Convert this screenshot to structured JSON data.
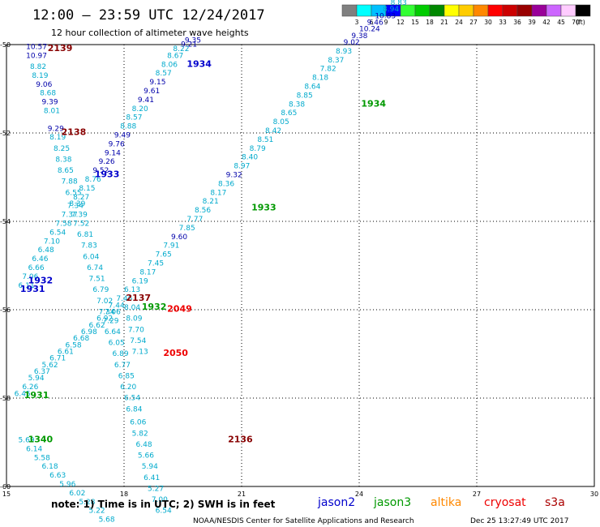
{
  "header": {
    "title": "12:00 – 23:59 UTC 12/24/2017",
    "subtitle": "12 hour collection of altimeter wave heights"
  },
  "colorbar": {
    "labels": [
      "3",
      "6",
      "9",
      "12",
      "15",
      "18",
      "21",
      "24",
      "27",
      "30",
      "33",
      "36",
      "39",
      "42",
      "45",
      "70",
      "(ft)"
    ],
    "colors": [
      "#808080",
      "#00ffff",
      "#00bfff",
      "#0000ff",
      "#33ff33",
      "#00cc00",
      "#008800",
      "#ffff00",
      "#ffcc00",
      "#ff8800",
      "#ff0000",
      "#cc0000",
      "#990000",
      "#990099",
      "#cc66ff",
      "#ffccff",
      "#000000"
    ]
  },
  "footer": {
    "note": "note:  1) Time is in UTC; 2) SWH is in feet",
    "satellites": [
      {
        "name": "jason2",
        "color": "#0000cc"
      },
      {
        "name": "jason3",
        "color": "#009900"
      },
      {
        "name": "altika",
        "color": "#ff8800"
      },
      {
        "name": "cryosat",
        "color": "#ee0000"
      },
      {
        "name": "s3a",
        "color": "#aa0000"
      }
    ],
    "credit": "NOAA/NESDIS Center for Satellite Applications and Research",
    "timestamp": "Dec 25 13:27:49 UTC 2017"
  },
  "chart_data": {
    "type": "scatter",
    "xlim": [
      15,
      30
    ],
    "ylim": [
      -60,
      -50
    ],
    "x_ticks": [
      15,
      18,
      21,
      24,
      27,
      30
    ],
    "y_ticks": [
      -50,
      -52,
      -54,
      -56,
      -58,
      -60
    ],
    "grid": true,
    "colors": {
      "light": "#00aacc",
      "dark": "#0000aa",
      "jason2": "#0000cc",
      "jason3": "#009900",
      "cryosat": "#ee0000",
      "s3a": "#880000"
    },
    "points": [
      {
        "x": 15.5,
        "y": -50.1,
        "v": "10.57",
        "c": "dark"
      },
      {
        "x": 15.5,
        "y": -50.3,
        "v": "10.97",
        "c": "dark"
      },
      {
        "x": 15.6,
        "y": -50.55,
        "v": "8.82",
        "c": "light"
      },
      {
        "x": 15.65,
        "y": -50.75,
        "v": "8.19",
        "c": "light"
      },
      {
        "x": 15.75,
        "y": -50.95,
        "v": "9.06",
        "c": "dark"
      },
      {
        "x": 15.85,
        "y": -51.15,
        "v": "8.68",
        "c": "light"
      },
      {
        "x": 15.9,
        "y": -51.35,
        "v": "9.39",
        "c": "dark"
      },
      {
        "x": 15.95,
        "y": -51.55,
        "v": "8.01",
        "c": "light"
      },
      {
        "x": 16.05,
        "y": -51.95,
        "v": "9.29",
        "c": "dark"
      },
      {
        "x": 16.1,
        "y": -52.15,
        "v": "8.19",
        "c": "light"
      },
      {
        "x": 16.2,
        "y": -52.4,
        "v": "8.25",
        "c": "light"
      },
      {
        "x": 16.25,
        "y": -52.65,
        "v": "8.38",
        "c": "light"
      },
      {
        "x": 16.3,
        "y": -52.9,
        "v": "8.65",
        "c": "light"
      },
      {
        "x": 16.4,
        "y": -53.15,
        "v": "7.88",
        "c": "light"
      },
      {
        "x": 16.5,
        "y": -53.4,
        "v": "6.55",
        "c": "light"
      },
      {
        "x": 16.6,
        "y": -53.65,
        "v": "8.39",
        "c": "light"
      },
      {
        "x": 16.65,
        "y": -53.9,
        "v": "7.39",
        "c": "light"
      },
      {
        "x": 16.7,
        "y": -54.1,
        "v": "7.52",
        "c": "light"
      },
      {
        "x": 16.8,
        "y": -54.35,
        "v": "6.81",
        "c": "light"
      },
      {
        "x": 16.9,
        "y": -54.6,
        "v": "7.83",
        "c": "light"
      },
      {
        "x": 16.95,
        "y": -54.85,
        "v": "6.04",
        "c": "light"
      },
      {
        "x": 17.05,
        "y": -55.1,
        "v": "6.74",
        "c": "light"
      },
      {
        "x": 17.1,
        "y": -55.35,
        "v": "7.51",
        "c": "light"
      },
      {
        "x": 17.2,
        "y": -55.6,
        "v": "6.79",
        "c": "light"
      },
      {
        "x": 17.3,
        "y": -55.85,
        "v": "7.02",
        "c": "light"
      },
      {
        "x": 17.35,
        "y": -56.1,
        "v": "7.34",
        "c": "light"
      },
      {
        "x": 17.45,
        "y": -56.3,
        "v": "7.29",
        "c": "light"
      },
      {
        "x": 17.5,
        "y": -56.55,
        "v": "6.64",
        "c": "light"
      },
      {
        "x": 17.6,
        "y": -56.8,
        "v": "6.05",
        "c": "light"
      },
      {
        "x": 17.7,
        "y": -57.05,
        "v": "6.89",
        "c": "light"
      },
      {
        "x": 17.75,
        "y": -57.3,
        "v": "6.77",
        "c": "light"
      },
      {
        "x": 17.85,
        "y": -57.55,
        "v": "6.85",
        "c": "light"
      },
      {
        "x": 17.9,
        "y": -57.8,
        "v": "6.20",
        "c": "light"
      },
      {
        "x": 18.0,
        "y": -58.05,
        "v": "6.54",
        "c": "light"
      },
      {
        "x": 18.05,
        "y": -58.3,
        "v": "6.84",
        "c": "light"
      },
      {
        "x": 18.15,
        "y": -58.6,
        "v": "6.06",
        "c": "light"
      },
      {
        "x": 18.2,
        "y": -58.85,
        "v": "5.82",
        "c": "light"
      },
      {
        "x": 18.3,
        "y": -59.1,
        "v": "6.48",
        "c": "light"
      },
      {
        "x": 18.35,
        "y": -59.35,
        "v": "5.66",
        "c": "light"
      },
      {
        "x": 18.45,
        "y": -59.6,
        "v": "5.94",
        "c": "light"
      },
      {
        "x": 18.5,
        "y": -59.85,
        "v": "6.41",
        "c": "light"
      },
      {
        "x": 18.6,
        "y": -60.1,
        "v": "5.27",
        "c": "light"
      },
      {
        "x": 18.7,
        "y": -60.35,
        "v": "7.00",
        "c": "light"
      },
      {
        "x": 18.8,
        "y": -60.6,
        "v": "6.54",
        "c": "light"
      },
      {
        "x": 15.3,
        "y": -55.5,
        "v": "6.11",
        "c": "light"
      },
      {
        "x": 15.4,
        "y": -55.3,
        "v": "7.06",
        "c": "light"
      },
      {
        "x": 15.55,
        "y": -55.1,
        "v": "6.66",
        "c": "light"
      },
      {
        "x": 15.65,
        "y": -54.9,
        "v": "6.46",
        "c": "light"
      },
      {
        "x": 15.8,
        "y": -54.7,
        "v": "6.48",
        "c": "light"
      },
      {
        "x": 15.95,
        "y": -54.5,
        "v": "7.10",
        "c": "light"
      },
      {
        "x": 16.1,
        "y": -54.3,
        "v": "6.54",
        "c": "light"
      },
      {
        "x": 16.25,
        "y": -54.1,
        "v": "7.58",
        "c": "light"
      },
      {
        "x": 16.4,
        "y": -53.9,
        "v": "7.37",
        "c": "light"
      },
      {
        "x": 16.55,
        "y": -53.7,
        "v": "7.34",
        "c": "light"
      },
      {
        "x": 16.7,
        "y": -53.5,
        "v": "8.27",
        "c": "light"
      },
      {
        "x": 16.85,
        "y": -53.3,
        "v": "8.15",
        "c": "light"
      },
      {
        "x": 17.0,
        "y": -53.1,
        "v": "8.76",
        "c": "light"
      },
      {
        "x": 17.2,
        "y": -52.9,
        "v": "9.52",
        "c": "dark"
      },
      {
        "x": 17.35,
        "y": -52.7,
        "v": "9.26",
        "c": "dark"
      },
      {
        "x": 17.5,
        "y": -52.5,
        "v": "9.14",
        "c": "dark"
      },
      {
        "x": 17.6,
        "y": -52.3,
        "v": "9.76",
        "c": "dark"
      },
      {
        "x": 17.75,
        "y": -52.1,
        "v": "9.49",
        "c": "dark"
      },
      {
        "x": 17.9,
        "y": -51.9,
        "v": "8.88",
        "c": "light"
      },
      {
        "x": 18.05,
        "y": -51.7,
        "v": "8.57",
        "c": "light"
      },
      {
        "x": 18.2,
        "y": -51.5,
        "v": "8.20",
        "c": "light"
      },
      {
        "x": 18.35,
        "y": -51.3,
        "v": "9.41",
        "c": "dark"
      },
      {
        "x": 18.5,
        "y": -51.1,
        "v": "9.61",
        "c": "dark"
      },
      {
        "x": 18.65,
        "y": -50.9,
        "v": "9.15",
        "c": "dark"
      },
      {
        "x": 18.8,
        "y": -50.7,
        "v": "8.57",
        "c": "light"
      },
      {
        "x": 18.95,
        "y": -50.5,
        "v": "8.06",
        "c": "light"
      },
      {
        "x": 19.1,
        "y": -50.3,
        "v": "8.67",
        "c": "light"
      },
      {
        "x": 19.25,
        "y": -50.15,
        "v": "8.22",
        "c": "light"
      },
      {
        "x": 19.45,
        "y": -50.05,
        "v": "9.21",
        "c": "dark"
      },
      {
        "x": 19.55,
        "y": -49.95,
        "v": "9.35",
        "c": "dark"
      },
      {
        "x": 15.2,
        "y": -57.95,
        "v": "6.45",
        "c": "light"
      },
      {
        "x": 15.4,
        "y": -57.8,
        "v": "6.26",
        "c": "light"
      },
      {
        "x": 15.55,
        "y": -57.6,
        "v": "5.94",
        "c": "light"
      },
      {
        "x": 15.7,
        "y": -57.45,
        "v": "6.37",
        "c": "light"
      },
      {
        "x": 15.9,
        "y": -57.3,
        "v": "5.62",
        "c": "light"
      },
      {
        "x": 16.1,
        "y": -57.15,
        "v": "6.71",
        "c": "light"
      },
      {
        "x": 16.3,
        "y": -57.0,
        "v": "6.61",
        "c": "light"
      },
      {
        "x": 16.5,
        "y": -56.85,
        "v": "6.58",
        "c": "light"
      },
      {
        "x": 16.7,
        "y": -56.7,
        "v": "6.68",
        "c": "light"
      },
      {
        "x": 16.9,
        "y": -56.55,
        "v": "6.98",
        "c": "light"
      },
      {
        "x": 17.1,
        "y": -56.4,
        "v": "6.62",
        "c": "light"
      },
      {
        "x": 17.3,
        "y": -56.25,
        "v": "6.92",
        "c": "light"
      },
      {
        "x": 17.5,
        "y": -56.1,
        "v": "7.06",
        "c": "light"
      },
      {
        "x": 17.6,
        "y": -55.95,
        "v": "7.44",
        "c": "light"
      },
      {
        "x": 17.8,
        "y": -55.8,
        "v": "7.46",
        "c": "light"
      },
      {
        "x": 18.0,
        "y": -55.6,
        "v": "6.13",
        "c": "light"
      },
      {
        "x": 18.2,
        "y": -55.4,
        "v": "6.19",
        "c": "light"
      },
      {
        "x": 18.4,
        "y": -55.2,
        "v": "8.17",
        "c": "light"
      },
      {
        "x": 18.6,
        "y": -55.0,
        "v": "7.45",
        "c": "light"
      },
      {
        "x": 18.8,
        "y": -54.8,
        "v": "7.65",
        "c": "light"
      },
      {
        "x": 19.0,
        "y": -54.6,
        "v": "7.91",
        "c": "light"
      },
      {
        "x": 19.2,
        "y": -54.4,
        "v": "9.60",
        "c": "dark"
      },
      {
        "x": 19.4,
        "y": -54.2,
        "v": "7.85",
        "c": "light"
      },
      {
        "x": 19.6,
        "y": -54.0,
        "v": "7.77",
        "c": "light"
      },
      {
        "x": 19.8,
        "y": -53.8,
        "v": "8.56",
        "c": "light"
      },
      {
        "x": 20.0,
        "y": -53.6,
        "v": "8.21",
        "c": "light"
      },
      {
        "x": 20.2,
        "y": -53.4,
        "v": "8.17",
        "c": "light"
      },
      {
        "x": 20.4,
        "y": -53.2,
        "v": "8.36",
        "c": "light"
      },
      {
        "x": 20.6,
        "y": -53.0,
        "v": "9.32",
        "c": "dark"
      },
      {
        "x": 20.8,
        "y": -52.8,
        "v": "8.97",
        "c": "light"
      },
      {
        "x": 21.0,
        "y": -52.6,
        "v": "8.40",
        "c": "light"
      },
      {
        "x": 21.2,
        "y": -52.4,
        "v": "8.79",
        "c": "light"
      },
      {
        "x": 21.4,
        "y": -52.2,
        "v": "8.51",
        "c": "light"
      },
      {
        "x": 21.6,
        "y": -52.0,
        "v": "8.42",
        "c": "light"
      },
      {
        "x": 21.8,
        "y": -51.8,
        "v": "8.05",
        "c": "light"
      },
      {
        "x": 22.0,
        "y": -51.6,
        "v": "8.65",
        "c": "light"
      },
      {
        "x": 22.2,
        "y": -51.4,
        "v": "8.38",
        "c": "light"
      },
      {
        "x": 22.4,
        "y": -51.2,
        "v": "8.85",
        "c": "light"
      },
      {
        "x": 22.6,
        "y": -51.0,
        "v": "8.64",
        "c": "light"
      },
      {
        "x": 22.8,
        "y": -50.8,
        "v": "8.18",
        "c": "light"
      },
      {
        "x": 23.0,
        "y": -50.6,
        "v": "7.82",
        "c": "light"
      },
      {
        "x": 23.2,
        "y": -50.4,
        "v": "8.37",
        "c": "light"
      },
      {
        "x": 23.4,
        "y": -50.2,
        "v": "8.93",
        "c": "light"
      },
      {
        "x": 23.6,
        "y": -50.0,
        "v": "9.02",
        "c": "dark"
      },
      {
        "x": 23.8,
        "y": -49.85,
        "v": "9.38",
        "c": "dark"
      },
      {
        "x": 24.0,
        "y": -49.7,
        "v": "10.24",
        "c": "dark"
      },
      {
        "x": 24.2,
        "y": -49.55,
        "v": "9.46",
        "c": "dark"
      },
      {
        "x": 24.4,
        "y": -49.4,
        "v": "10.83",
        "c": "dark"
      },
      {
        "x": 24.6,
        "y": -49.25,
        "v": "8.94",
        "c": "light"
      },
      {
        "x": 24.8,
        "y": -49.1,
        "v": "8.83",
        "c": "light"
      },
      {
        "x": 15.3,
        "y": -59.0,
        "v": "5.69",
        "c": "light"
      },
      {
        "x": 15.5,
        "y": -59.2,
        "v": "6.14",
        "c": "light"
      },
      {
        "x": 15.7,
        "y": -59.4,
        "v": "5.58",
        "c": "light"
      },
      {
        "x": 15.9,
        "y": -59.6,
        "v": "6.18",
        "c": "light"
      },
      {
        "x": 16.1,
        "y": -59.8,
        "v": "6.63",
        "c": "light"
      },
      {
        "x": 16.35,
        "y": -60.0,
        "v": "5.96",
        "c": "light"
      },
      {
        "x": 16.6,
        "y": -60.2,
        "v": "6.02",
        "c": "light"
      },
      {
        "x": 16.85,
        "y": -60.4,
        "v": "5.28",
        "c": "light"
      },
      {
        "x": 17.1,
        "y": -60.6,
        "v": "5.22",
        "c": "light"
      },
      {
        "x": 17.35,
        "y": -60.8,
        "v": "5.68",
        "c": "light"
      },
      {
        "x": 18.0,
        "y": -56.0,
        "v": "8.04",
        "c": "light"
      },
      {
        "x": 18.05,
        "y": -56.25,
        "v": "8.09",
        "c": "light"
      },
      {
        "x": 18.1,
        "y": -56.5,
        "v": "7.70",
        "c": "light"
      },
      {
        "x": 18.15,
        "y": -56.75,
        "v": "7.54",
        "c": "light"
      },
      {
        "x": 18.2,
        "y": -57.0,
        "v": "7.13",
        "c": "light"
      }
    ],
    "passes": [
      {
        "x": 16.05,
        "y": -50.15,
        "label": "2139",
        "c": "s3a"
      },
      {
        "x": 16.4,
        "y": -52.05,
        "label": "2138",
        "c": "s3a"
      },
      {
        "x": 17.25,
        "y": -53.0,
        "label": "1933",
        "c": "jason2"
      },
      {
        "x": 19.6,
        "y": -50.5,
        "label": "1934",
        "c": "jason2"
      },
      {
        "x": 15.55,
        "y": -55.4,
        "label": "1932",
        "c": "jason2"
      },
      {
        "x": 15.35,
        "y": -55.6,
        "label": "1931",
        "c": "jason2"
      },
      {
        "x": 21.25,
        "y": -53.75,
        "label": "1933",
        "c": "jason3"
      },
      {
        "x": 24.05,
        "y": -51.4,
        "label": "1934",
        "c": "jason3"
      },
      {
        "x": 18.05,
        "y": -55.8,
        "label": "2137",
        "c": "s3a"
      },
      {
        "x": 18.45,
        "y": -56.0,
        "label": "1932",
        "c": "jason3"
      },
      {
        "x": 19.1,
        "y": -56.05,
        "label": "2049",
        "c": "cryosat"
      },
      {
        "x": 19.0,
        "y": -57.05,
        "label": "2050",
        "c": "cryosat"
      },
      {
        "x": 15.45,
        "y": -58.0,
        "label": "1931",
        "c": "jason3"
      },
      {
        "x": 15.55,
        "y": -59.0,
        "label": "1340",
        "c": "jason3"
      },
      {
        "x": 20.65,
        "y": -59.0,
        "label": "2136",
        "c": "s3a"
      }
    ]
  }
}
